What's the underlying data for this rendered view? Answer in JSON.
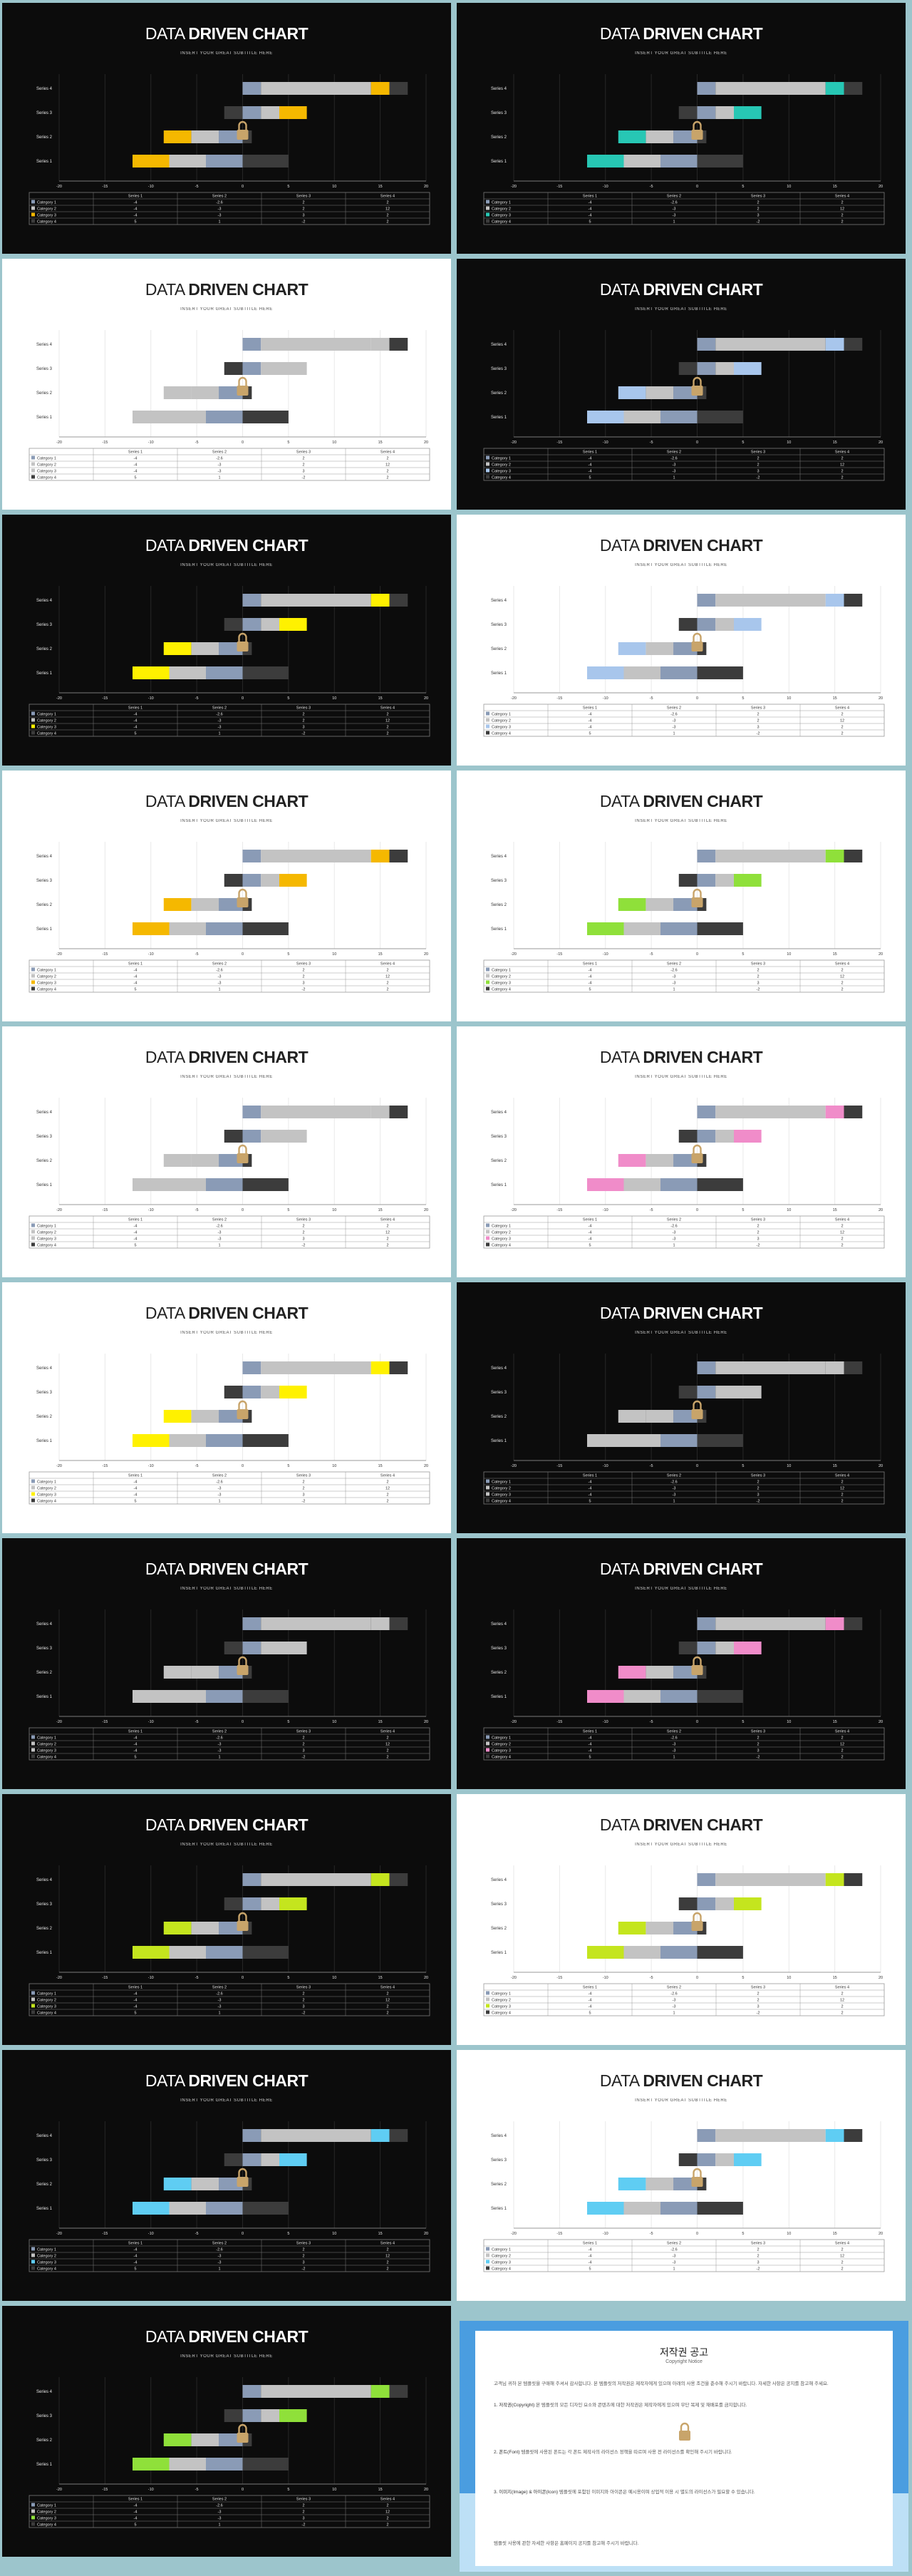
{
  "slide": {
    "title_light": "DATA ",
    "title_bold": "DRIVEN CHART",
    "subtitle": "INSERT YOUR GREAT SUBTITLE HERE"
  },
  "colors": {
    "blue_gray": "#8a9bb6",
    "light_gray": "#c3c3c3",
    "dark_gray": "#3c3c3c",
    "orange": "#f5b800",
    "teal": "#27c7b4",
    "light_blue": "#a8c6ec",
    "yellow": "#fff100",
    "green": "#8fe03a",
    "pink": "#f08cc9",
    "lime": "#c4e51e",
    "sky": "#5fcdf3"
  },
  "slides": [
    {
      "theme": "dark",
      "accent": "orange"
    },
    {
      "theme": "dark",
      "accent": "teal"
    },
    {
      "theme": "light",
      "accent": "light_gray"
    },
    {
      "theme": "dark",
      "accent": "light_blue"
    },
    {
      "theme": "dark",
      "accent": "yellow"
    },
    {
      "theme": "light",
      "accent": "light_blue"
    },
    {
      "theme": "light",
      "accent": "orange"
    },
    {
      "theme": "light",
      "accent": "green"
    },
    {
      "theme": "light",
      "accent": "light_gray"
    },
    {
      "theme": "light",
      "accent": "pink"
    },
    {
      "theme": "light",
      "accent": "yellow"
    },
    {
      "theme": "dark",
      "accent": "light_gray"
    },
    {
      "theme": "dark",
      "accent": "light_gray"
    },
    {
      "theme": "dark",
      "accent": "pink"
    },
    {
      "theme": "dark",
      "accent": "lime"
    },
    {
      "theme": "light",
      "accent": "lime"
    },
    {
      "theme": "dark",
      "accent": "sky"
    },
    {
      "theme": "light",
      "accent": "sky"
    },
    {
      "theme": "dark",
      "accent": "green"
    }
  ],
  "chart_data": {
    "type": "bar",
    "orientation": "horizontal",
    "stacked": true,
    "categories": [
      "Series 1",
      "Series 2",
      "Series 3",
      "Series 4"
    ],
    "series": [
      {
        "name": "Category 1",
        "values": [
          -4,
          -2.6,
          2,
          2
        ],
        "color": "blue_gray"
      },
      {
        "name": "Category 2",
        "values": [
          -4,
          -3,
          2,
          12
        ],
        "color": "light_gray"
      },
      {
        "name": "Category 3",
        "values": [
          -4,
          -3,
          3,
          2
        ],
        "color": "accent"
      },
      {
        "name": "Category 4",
        "values": [
          5,
          1,
          -2,
          2
        ],
        "color": "dark_gray"
      }
    ],
    "xlim": [
      -20,
      20
    ],
    "xticks": [
      "-20",
      "-15",
      "-10",
      "-5",
      "0",
      "5",
      "10",
      "15",
      "20"
    ],
    "table": {
      "headers": [
        "",
        "Series 1",
        "Series 2",
        "Series 3",
        "Series 4"
      ],
      "rows": [
        [
          "Category 1",
          "-4",
          "-2.6",
          "2",
          "2"
        ],
        [
          "Category 2",
          "-4",
          "-3",
          "2",
          "12"
        ],
        [
          "Category 3",
          "-4",
          "-3",
          "3",
          "2"
        ],
        [
          "Category 4",
          "5",
          "1",
          "-2",
          "2"
        ]
      ]
    }
  },
  "notice": {
    "title": "저작권 공고",
    "subtitle": "Copyright Notice",
    "intro": "고객님 귀하 본 템플릿을 구매해 주셔서 감사합니다. 본 템플릿의 저작권은 제작자에게 있으며 아래의 사용 조건을 준수해 주시기 바랍니다. 자세한 사항은 공지를 참고해 주세요.",
    "items": [
      {
        "head": "1. 저작권(Copyright)",
        "body": "본 템플릿의 모든 디자인 요소와 콘텐츠에 대한 저작권은 제작자에게 있으며 무단 복제 및 재배포를 금지합니다."
      },
      {
        "head": "2. 폰트(Font)",
        "body": "템플릿에 사용된 폰트는 각 폰트 제작사의 라이선스 정책을 따르며 사용 전 라이선스를 확인해 주시기 바랍니다."
      },
      {
        "head": "3. 이미지(Image) & 아이콘(Icon)",
        "body": "템플릿에 포함된 이미지와 아이콘은 예시용이며 상업적 이용 시 별도의 라이선스가 필요할 수 있습니다."
      }
    ],
    "footer": "템플릿 사용에 관한 자세한 사항은 홈페이지 공지를 참고해 주시기 바랍니다."
  }
}
